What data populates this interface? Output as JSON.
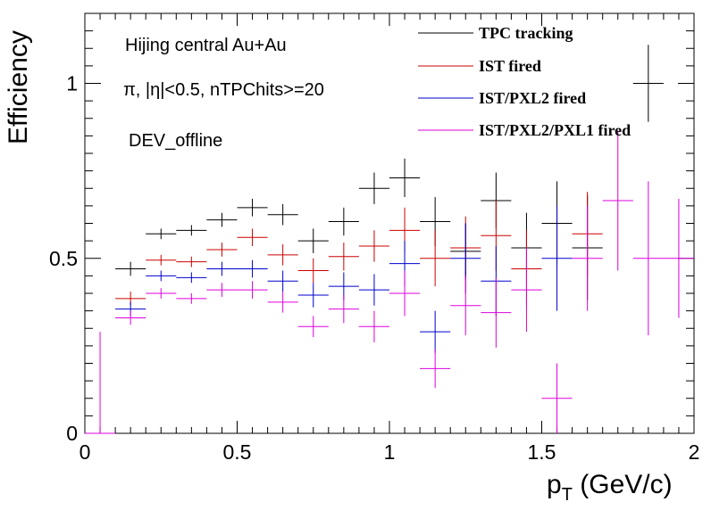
{
  "chart_data": {
    "type": "scatter",
    "xlabel_main": "p",
    "xlabel_sub": "T",
    "xlabel_rest": " (GeV/c)",
    "ylabel": "Efficiency",
    "xlim": [
      0,
      2
    ],
    "ylim": [
      0,
      1.2
    ],
    "x_ticks": [
      {
        "value": 0,
        "label": "0"
      },
      {
        "value": 0.5,
        "label": "0.5"
      },
      {
        "value": 1,
        "label": "1"
      },
      {
        "value": 1.5,
        "label": "1.5"
      },
      {
        "value": 2,
        "label": "2"
      }
    ],
    "y_ticks": [
      {
        "value": 0,
        "label": "0"
      },
      {
        "value": 0.5,
        "label": "0.5"
      },
      {
        "value": 1,
        "label": "1"
      }
    ],
    "annotations": [
      "Hijing central Au+Au",
      "π, |η|<0.5, nTPChits>=20",
      "DEV_offline"
    ],
    "legend_position": "top-right",
    "series": [
      {
        "name": "TPC tracking",
        "color": "#000000",
        "points": [
          {
            "x": 0.15,
            "y": 0.47,
            "yerr": 0.02
          },
          {
            "x": 0.25,
            "y": 0.57,
            "yerr": 0.015
          },
          {
            "x": 0.35,
            "y": 0.58,
            "yerr": 0.015
          },
          {
            "x": 0.45,
            "y": 0.61,
            "yerr": 0.02
          },
          {
            "x": 0.55,
            "y": 0.645,
            "yerr": 0.025
          },
          {
            "x": 0.65,
            "y": 0.625,
            "yerr": 0.03
          },
          {
            "x": 0.75,
            "y": 0.55,
            "yerr": 0.035
          },
          {
            "x": 0.85,
            "y": 0.605,
            "yerr": 0.04
          },
          {
            "x": 0.95,
            "y": 0.7,
            "yerr": 0.045
          },
          {
            "x": 1.05,
            "y": 0.73,
            "yerr": 0.055
          },
          {
            "x": 1.15,
            "y": 0.605,
            "yerr": 0.07
          },
          {
            "x": 1.25,
            "y": 0.52,
            "yerr": 0.08
          },
          {
            "x": 1.35,
            "y": 0.665,
            "yerr": 0.08
          },
          {
            "x": 1.45,
            "y": 0.53,
            "yerr": 0.1
          },
          {
            "x": 1.55,
            "y": 0.6,
            "yerr": 0.12
          },
          {
            "x": 1.65,
            "y": 0.53,
            "yerr": 0.15
          },
          {
            "x": 1.85,
            "y": 1.0,
            "yerr": 0.11
          }
        ]
      },
      {
        "name": "IST fired",
        "color": "#cc0000",
        "points": [
          {
            "x": 0.15,
            "y": 0.385,
            "yerr": 0.02
          },
          {
            "x": 0.25,
            "y": 0.495,
            "yerr": 0.015
          },
          {
            "x": 0.35,
            "y": 0.49,
            "yerr": 0.015
          },
          {
            "x": 0.45,
            "y": 0.525,
            "yerr": 0.02
          },
          {
            "x": 0.55,
            "y": 0.56,
            "yerr": 0.025
          },
          {
            "x": 0.65,
            "y": 0.51,
            "yerr": 0.03
          },
          {
            "x": 0.75,
            "y": 0.465,
            "yerr": 0.035
          },
          {
            "x": 0.85,
            "y": 0.505,
            "yerr": 0.04
          },
          {
            "x": 0.95,
            "y": 0.535,
            "yerr": 0.045
          },
          {
            "x": 1.05,
            "y": 0.58,
            "yerr": 0.065
          },
          {
            "x": 1.15,
            "y": 0.5,
            "yerr": 0.08
          },
          {
            "x": 1.25,
            "y": 0.53,
            "yerr": 0.09
          },
          {
            "x": 1.35,
            "y": 0.565,
            "yerr": 0.1
          },
          {
            "x": 1.45,
            "y": 0.47,
            "yerr": 0.11
          },
          {
            "x": 1.65,
            "y": 0.57,
            "yerr": 0.12
          }
        ]
      },
      {
        "name": "IST/PXL2 fired",
        "color": "#0000cc",
        "points": [
          {
            "x": 0.15,
            "y": 0.355,
            "yerr": 0.02
          },
          {
            "x": 0.25,
            "y": 0.45,
            "yerr": 0.015
          },
          {
            "x": 0.35,
            "y": 0.445,
            "yerr": 0.015
          },
          {
            "x": 0.45,
            "y": 0.47,
            "yerr": 0.02
          },
          {
            "x": 0.55,
            "y": 0.47,
            "yerr": 0.025
          },
          {
            "x": 0.65,
            "y": 0.435,
            "yerr": 0.03
          },
          {
            "x": 0.75,
            "y": 0.395,
            "yerr": 0.035
          },
          {
            "x": 0.85,
            "y": 0.42,
            "yerr": 0.04
          },
          {
            "x": 0.95,
            "y": 0.41,
            "yerr": 0.045
          },
          {
            "x": 1.05,
            "y": 0.485,
            "yerr": 0.065
          },
          {
            "x": 1.15,
            "y": 0.29,
            "yerr": 0.06
          },
          {
            "x": 1.25,
            "y": 0.5,
            "yerr": 0.1
          },
          {
            "x": 1.35,
            "y": 0.435,
            "yerr": 0.1
          },
          {
            "x": 1.55,
            "y": 0.5,
            "yerr": 0.15
          }
        ]
      },
      {
        "name": "IST/PXL2/PXL1 fired",
        "color": "#dd00dd",
        "points": [
          {
            "x": 0.05,
            "y": 0.0,
            "yerr": 0.29
          },
          {
            "x": 0.15,
            "y": 0.33,
            "yerr": 0.02
          },
          {
            "x": 0.25,
            "y": 0.4,
            "yerr": 0.015
          },
          {
            "x": 0.35,
            "y": 0.385,
            "yerr": 0.015
          },
          {
            "x": 0.45,
            "y": 0.41,
            "yerr": 0.02
          },
          {
            "x": 0.55,
            "y": 0.41,
            "yerr": 0.025
          },
          {
            "x": 0.65,
            "y": 0.375,
            "yerr": 0.03
          },
          {
            "x": 0.75,
            "y": 0.305,
            "yerr": 0.03
          },
          {
            "x": 0.85,
            "y": 0.355,
            "yerr": 0.04
          },
          {
            "x": 0.95,
            "y": 0.305,
            "yerr": 0.045
          },
          {
            "x": 1.05,
            "y": 0.4,
            "yerr": 0.065
          },
          {
            "x": 1.15,
            "y": 0.185,
            "yerr": 0.055
          },
          {
            "x": 1.25,
            "y": 0.365,
            "yerr": 0.085
          },
          {
            "x": 1.35,
            "y": 0.345,
            "yerr": 0.1
          },
          {
            "x": 1.45,
            "y": 0.41,
            "yerr": 0.12
          },
          {
            "x": 1.55,
            "y": 0.1,
            "yerr": 0.1
          },
          {
            "x": 1.65,
            "y": 0.5,
            "yerr": 0.15
          },
          {
            "x": 1.75,
            "y": 0.665,
            "yerr": 0.2
          },
          {
            "x": 1.85,
            "y": 0.5,
            "yerr": 0.22
          },
          {
            "x": 1.95,
            "y": 0.5,
            "yerr": 0.17
          }
        ]
      }
    ]
  }
}
